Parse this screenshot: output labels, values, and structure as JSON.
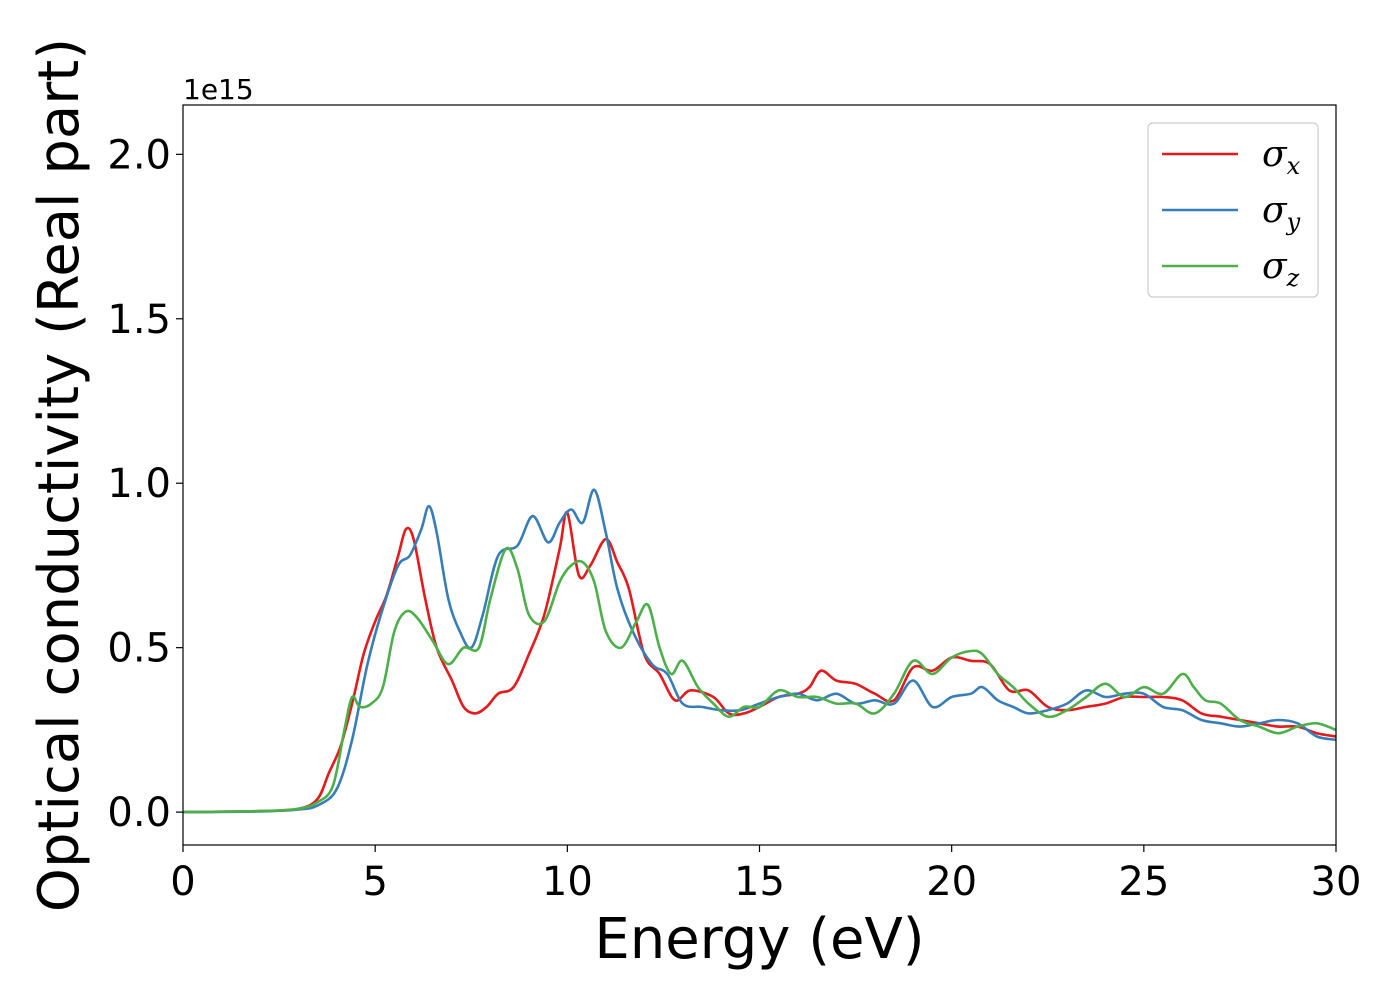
{
  "chart_data": {
    "type": "line",
    "title": "",
    "xlabel": "Energy (eV)",
    "ylabel": "Optical conductivity (Real part)",
    "y_offset_label": "1e15",
    "xlim": [
      0,
      30
    ],
    "ylim": [
      -0.1,
      2.15
    ],
    "xticks": [
      0,
      5,
      10,
      15,
      20,
      25,
      30
    ],
    "xtick_labels": [
      "0",
      "5",
      "10",
      "15",
      "20",
      "25",
      "30"
    ],
    "yticks": [
      0.0,
      0.5,
      1.0,
      1.5,
      2.0
    ],
    "ytick_labels": [
      "0.0",
      "0.5",
      "1.0",
      "1.5",
      "2.0"
    ],
    "grid": false,
    "legend_position": "top-right",
    "series": [
      {
        "name": "σx",
        "legend_symbol": "σ",
        "legend_subscript": "x",
        "color": "#e41a1c",
        "points": [
          [
            0,
            0.0
          ],
          [
            2,
            0.003
          ],
          [
            3,
            0.01
          ],
          [
            3.5,
            0.04
          ],
          [
            3.8,
            0.12
          ],
          [
            4.1,
            0.2
          ],
          [
            4.4,
            0.33
          ],
          [
            4.7,
            0.48
          ],
          [
            5.0,
            0.58
          ],
          [
            5.3,
            0.66
          ],
          [
            5.6,
            0.78
          ],
          [
            5.8,
            0.86
          ],
          [
            6.0,
            0.83
          ],
          [
            6.3,
            0.65
          ],
          [
            6.6,
            0.5
          ],
          [
            7.0,
            0.4
          ],
          [
            7.3,
            0.32
          ],
          [
            7.6,
            0.3
          ],
          [
            7.9,
            0.32
          ],
          [
            8.2,
            0.36
          ],
          [
            8.6,
            0.38
          ],
          [
            9.0,
            0.48
          ],
          [
            9.4,
            0.6
          ],
          [
            9.8,
            0.8
          ],
          [
            10.0,
            0.91
          ],
          [
            10.3,
            0.72
          ],
          [
            10.6,
            0.75
          ],
          [
            11.0,
            0.83
          ],
          [
            11.3,
            0.76
          ],
          [
            11.6,
            0.68
          ],
          [
            12.0,
            0.48
          ],
          [
            12.4,
            0.42
          ],
          [
            12.8,
            0.34
          ],
          [
            13.2,
            0.37
          ],
          [
            13.8,
            0.35
          ],
          [
            14.2,
            0.3
          ],
          [
            14.6,
            0.3
          ],
          [
            15.0,
            0.32
          ],
          [
            15.5,
            0.35
          ],
          [
            16.0,
            0.36
          ],
          [
            16.3,
            0.38
          ],
          [
            16.6,
            0.43
          ],
          [
            17.0,
            0.4
          ],
          [
            17.5,
            0.39
          ],
          [
            18.0,
            0.36
          ],
          [
            18.5,
            0.34
          ],
          [
            19.0,
            0.44
          ],
          [
            19.5,
            0.43
          ],
          [
            20.0,
            0.47
          ],
          [
            20.5,
            0.46
          ],
          [
            21.0,
            0.45
          ],
          [
            21.5,
            0.37
          ],
          [
            22.0,
            0.37
          ],
          [
            22.5,
            0.32
          ],
          [
            23.0,
            0.31
          ],
          [
            23.5,
            0.32
          ],
          [
            24.0,
            0.33
          ],
          [
            24.5,
            0.35
          ],
          [
            25.0,
            0.35
          ],
          [
            25.5,
            0.35
          ],
          [
            26.0,
            0.34
          ],
          [
            26.5,
            0.3
          ],
          [
            27.0,
            0.29
          ],
          [
            27.5,
            0.28
          ],
          [
            28.0,
            0.27
          ],
          [
            28.5,
            0.26
          ],
          [
            29.0,
            0.26
          ],
          [
            29.5,
            0.24
          ],
          [
            30.0,
            0.23
          ]
        ]
      },
      {
        "name": "σy",
        "legend_symbol": "σ",
        "legend_subscript": "y",
        "color": "#377eb8",
        "points": [
          [
            0,
            0.0
          ],
          [
            2,
            0.002
          ],
          [
            3,
            0.008
          ],
          [
            3.5,
            0.02
          ],
          [
            4.0,
            0.07
          ],
          [
            4.4,
            0.22
          ],
          [
            4.8,
            0.45
          ],
          [
            5.2,
            0.62
          ],
          [
            5.6,
            0.75
          ],
          [
            5.9,
            0.78
          ],
          [
            6.2,
            0.86
          ],
          [
            6.4,
            0.93
          ],
          [
            6.6,
            0.85
          ],
          [
            6.9,
            0.65
          ],
          [
            7.2,
            0.55
          ],
          [
            7.5,
            0.5
          ],
          [
            7.8,
            0.6
          ],
          [
            8.2,
            0.78
          ],
          [
            8.7,
            0.81
          ],
          [
            9.1,
            0.9
          ],
          [
            9.5,
            0.82
          ],
          [
            9.8,
            0.88
          ],
          [
            10.1,
            0.92
          ],
          [
            10.4,
            0.88
          ],
          [
            10.7,
            0.98
          ],
          [
            11.0,
            0.85
          ],
          [
            11.3,
            0.68
          ],
          [
            11.7,
            0.55
          ],
          [
            12.2,
            0.45
          ],
          [
            12.6,
            0.42
          ],
          [
            13.0,
            0.33
          ],
          [
            13.5,
            0.32
          ],
          [
            14.0,
            0.31
          ],
          [
            14.5,
            0.31
          ],
          [
            15.0,
            0.33
          ],
          [
            15.5,
            0.35
          ],
          [
            16.0,
            0.36
          ],
          [
            16.5,
            0.34
          ],
          [
            17.0,
            0.36
          ],
          [
            17.5,
            0.33
          ],
          [
            18.0,
            0.34
          ],
          [
            18.5,
            0.33
          ],
          [
            19.0,
            0.4
          ],
          [
            19.5,
            0.32
          ],
          [
            20.0,
            0.35
          ],
          [
            20.5,
            0.36
          ],
          [
            20.8,
            0.38
          ],
          [
            21.2,
            0.34
          ],
          [
            21.6,
            0.32
          ],
          [
            22.0,
            0.3
          ],
          [
            22.5,
            0.31
          ],
          [
            23.0,
            0.33
          ],
          [
            23.5,
            0.37
          ],
          [
            24.0,
            0.35
          ],
          [
            24.5,
            0.36
          ],
          [
            25.0,
            0.36
          ],
          [
            25.5,
            0.32
          ],
          [
            26.0,
            0.31
          ],
          [
            26.5,
            0.28
          ],
          [
            27.0,
            0.27
          ],
          [
            27.5,
            0.26
          ],
          [
            28.0,
            0.27
          ],
          [
            28.5,
            0.28
          ],
          [
            29.0,
            0.27
          ],
          [
            29.5,
            0.23
          ],
          [
            30.0,
            0.22
          ]
        ]
      },
      {
        "name": "σz",
        "legend_symbol": "σ",
        "legend_subscript": "z",
        "color": "#4daf4a",
        "points": [
          [
            0,
            0.0
          ],
          [
            2,
            0.003
          ],
          [
            3,
            0.01
          ],
          [
            3.5,
            0.03
          ],
          [
            3.9,
            0.08
          ],
          [
            4.2,
            0.25
          ],
          [
            4.4,
            0.35
          ],
          [
            4.6,
            0.32
          ],
          [
            4.9,
            0.33
          ],
          [
            5.2,
            0.38
          ],
          [
            5.5,
            0.55
          ],
          [
            5.8,
            0.61
          ],
          [
            6.1,
            0.59
          ],
          [
            6.5,
            0.52
          ],
          [
            6.9,
            0.45
          ],
          [
            7.3,
            0.5
          ],
          [
            7.7,
            0.5
          ],
          [
            8.0,
            0.65
          ],
          [
            8.4,
            0.8
          ],
          [
            8.7,
            0.74
          ],
          [
            9.0,
            0.6
          ],
          [
            9.4,
            0.58
          ],
          [
            9.8,
            0.7
          ],
          [
            10.1,
            0.75
          ],
          [
            10.4,
            0.76
          ],
          [
            10.7,
            0.7
          ],
          [
            11.0,
            0.55
          ],
          [
            11.4,
            0.5
          ],
          [
            11.8,
            0.58
          ],
          [
            12.1,
            0.63
          ],
          [
            12.4,
            0.5
          ],
          [
            12.7,
            0.42
          ],
          [
            13.0,
            0.46
          ],
          [
            13.4,
            0.38
          ],
          [
            13.8,
            0.33
          ],
          [
            14.2,
            0.29
          ],
          [
            14.6,
            0.32
          ],
          [
            15.0,
            0.32
          ],
          [
            15.5,
            0.37
          ],
          [
            16.0,
            0.35
          ],
          [
            16.5,
            0.35
          ],
          [
            17.0,
            0.33
          ],
          [
            17.5,
            0.33
          ],
          [
            18.0,
            0.3
          ],
          [
            18.5,
            0.36
          ],
          [
            19.0,
            0.46
          ],
          [
            19.5,
            0.42
          ],
          [
            20.0,
            0.47
          ],
          [
            20.5,
            0.49
          ],
          [
            20.8,
            0.48
          ],
          [
            21.2,
            0.42
          ],
          [
            21.6,
            0.38
          ],
          [
            22.0,
            0.33
          ],
          [
            22.5,
            0.29
          ],
          [
            23.0,
            0.31
          ],
          [
            23.5,
            0.35
          ],
          [
            24.0,
            0.39
          ],
          [
            24.5,
            0.35
          ],
          [
            25.0,
            0.38
          ],
          [
            25.5,
            0.36
          ],
          [
            26.0,
            0.42
          ],
          [
            26.3,
            0.38
          ],
          [
            26.6,
            0.34
          ],
          [
            27.0,
            0.33
          ],
          [
            27.5,
            0.28
          ],
          [
            28.0,
            0.26
          ],
          [
            28.5,
            0.24
          ],
          [
            29.0,
            0.26
          ],
          [
            29.5,
            0.27
          ],
          [
            30.0,
            0.25
          ]
        ]
      }
    ]
  }
}
